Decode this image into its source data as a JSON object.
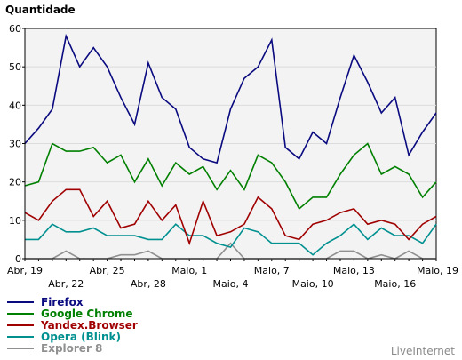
{
  "chart_data": {
    "type": "line",
    "ylabel": "Quantidade",
    "ylim": [
      0,
      60
    ],
    "yticks": [
      0,
      10,
      20,
      30,
      40,
      50,
      60
    ],
    "grid": true,
    "x": [
      "Abr, 19",
      "Abr, 20",
      "Abr, 21",
      "Abr, 22",
      "Abr, 23",
      "Abr, 24",
      "Abr, 25",
      "Abr, 26",
      "Abr, 27",
      "Abr, 28",
      "Abr, 29",
      "Abr, 30",
      "Maio, 1",
      "Maio, 2",
      "Maio, 3",
      "Maio, 4",
      "Maio, 5",
      "Maio, 6",
      "Maio, 7",
      "Maio, 8",
      "Maio, 9",
      "Maio, 10",
      "Maio, 11",
      "Maio, 12",
      "Maio, 13",
      "Maio, 14",
      "Maio, 15",
      "Maio, 16",
      "Maio, 17",
      "Maio, 18",
      "Maio, 19"
    ],
    "tick_labels": [
      "Abr, 19",
      "Abr, 22",
      "Abr, 25",
      "Abr, 28",
      "Maio, 1",
      "Maio, 4",
      "Maio, 7",
      "Maio, 10",
      "Maio, 13",
      "Maio, 16",
      "Maio, 19"
    ],
    "legend_position": "bottom-left",
    "series": [
      {
        "name": "Firefox",
        "color": "#0a0a80",
        "values": [
          30,
          34,
          39,
          58,
          50,
          55,
          50,
          42,
          35,
          51,
          42,
          39,
          29,
          26,
          25,
          39,
          47,
          50,
          57,
          29,
          26,
          33,
          30,
          42,
          53,
          46,
          38,
          42,
          27,
          33,
          38
        ]
      },
      {
        "name": "Google Chrome",
        "color": "#008000",
        "values": [
          19,
          20,
          30,
          28,
          28,
          29,
          25,
          27,
          20,
          26,
          19,
          25,
          22,
          24,
          18,
          23,
          18,
          27,
          25,
          20,
          13,
          16,
          16,
          22,
          27,
          30,
          22,
          24,
          22,
          16,
          20
        ]
      },
      {
        "name": "Yandex.Browser",
        "color": "#a00000",
        "values": [
          12,
          10,
          15,
          18,
          18,
          11,
          15,
          8,
          9,
          15,
          10,
          14,
          4,
          15,
          6,
          7,
          9,
          16,
          13,
          6,
          5,
          9,
          10,
          12,
          13,
          9,
          10,
          9,
          5,
          9,
          11
        ]
      },
      {
        "name": "Opera (Blink)",
        "color": "#009090",
        "values": [
          5,
          5,
          9,
          7,
          7,
          8,
          6,
          6,
          6,
          5,
          5,
          9,
          6,
          6,
          4,
          3,
          8,
          7,
          4,
          4,
          4,
          1,
          4,
          6,
          9,
          5,
          8,
          6,
          6,
          4,
          9
        ]
      },
      {
        "name": "Explorer 8",
        "color": "#909090",
        "values": [
          0,
          0,
          0,
          2,
          0,
          0,
          0,
          1,
          1,
          2,
          0,
          0,
          0,
          0,
          0,
          4,
          0,
          0,
          0,
          0,
          0,
          0,
          0,
          2,
          2,
          0,
          1,
          0,
          2,
          0,
          0
        ]
      }
    ]
  },
  "brand": "LiveInternet"
}
